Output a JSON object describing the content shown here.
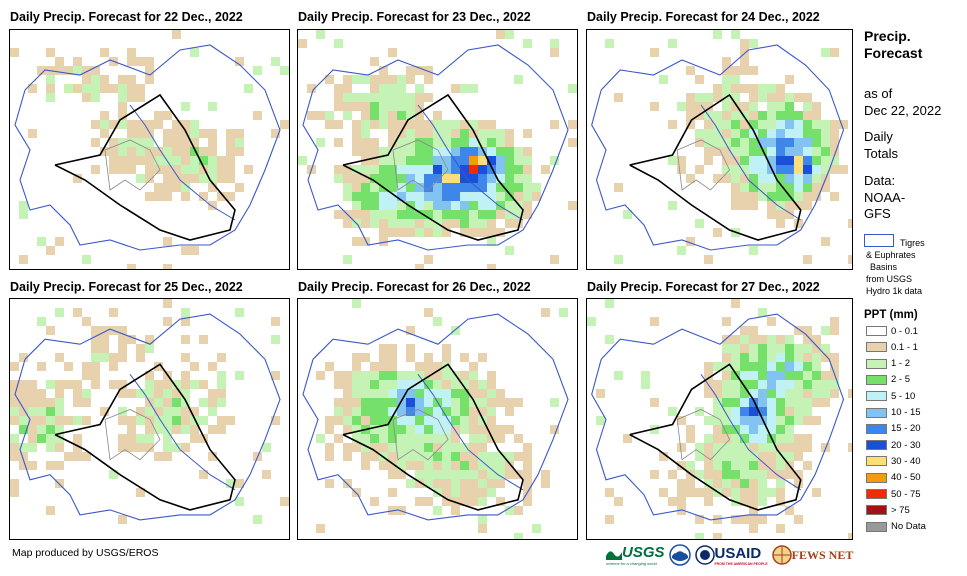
{
  "panels": [
    {
      "title": "Daily Precip. Forecast for 22 Dec., 2022",
      "day": "22 Dec."
    },
    {
      "title": "Daily Precip. Forecast for 23 Dec., 2022",
      "day": "23 Dec."
    },
    {
      "title": "Daily Precip. Forecast for 24 Dec., 2022",
      "day": "24 Dec."
    },
    {
      "title": "Daily Precip. Forecast for 25 Dec., 2022",
      "day": "25 Dec."
    },
    {
      "title": "Daily Precip. Forecast for 26 Dec., 2022",
      "day": "26 Dec."
    },
    {
      "title": "Daily Precip. Forecast for 27 Dec., 2022",
      "day": "27 Dec."
    }
  ],
  "sidebar": {
    "title_line1": "Precip.",
    "title_line2": "Forecast",
    "asof_line1": "as of",
    "asof_line2": "Dec 22, 2022",
    "daily_line1": "Daily",
    "daily_line2": "Totals",
    "data_line1": "Data:",
    "data_line2": "NOAA-",
    "data_line3": "GFS",
    "basin_line1": "Tigres",
    "basin_line2": "& Euphrates",
    "basin_line3": "Basins",
    "basin_line4": "from USGS",
    "basin_line5": "Hydro 1k data"
  },
  "legend": {
    "title": "PPT (mm)",
    "items": [
      {
        "label": "0 - 0.1",
        "color": "#ffffff"
      },
      {
        "label": "0.1 - 1",
        "color": "#e8d2ae"
      },
      {
        "label": "1 - 2",
        "color": "#c5f2b5"
      },
      {
        "label": "2 - 5",
        "color": "#75e06a"
      },
      {
        "label": "5 - 10",
        "color": "#bff1f5"
      },
      {
        "label": "10 - 15",
        "color": "#82c3f2"
      },
      {
        "label": "15 - 20",
        "color": "#3f86ea"
      },
      {
        "label": "20 - 30",
        "color": "#1a4fd8"
      },
      {
        "label": "30 - 40",
        "color": "#fddf7a"
      },
      {
        "label": "40 - 50",
        "color": "#f59c0d"
      },
      {
        "label": "50 - 75",
        "color": "#f22a05"
      },
      {
        "label": "> 75",
        "color": "#a51212"
      },
      {
        "label": "No Data",
        "color": "#999999"
      }
    ]
  },
  "credit": "Map produced by USGS/EROS",
  "logos": {
    "usgs": "USGS",
    "usgs_tagline": "science for a changing world",
    "noaa": "NOAA",
    "usaid": "USAID",
    "usaid_tagline": "FROM THE AMERICAN PEOPLE",
    "fews": "FEWS NET"
  }
}
